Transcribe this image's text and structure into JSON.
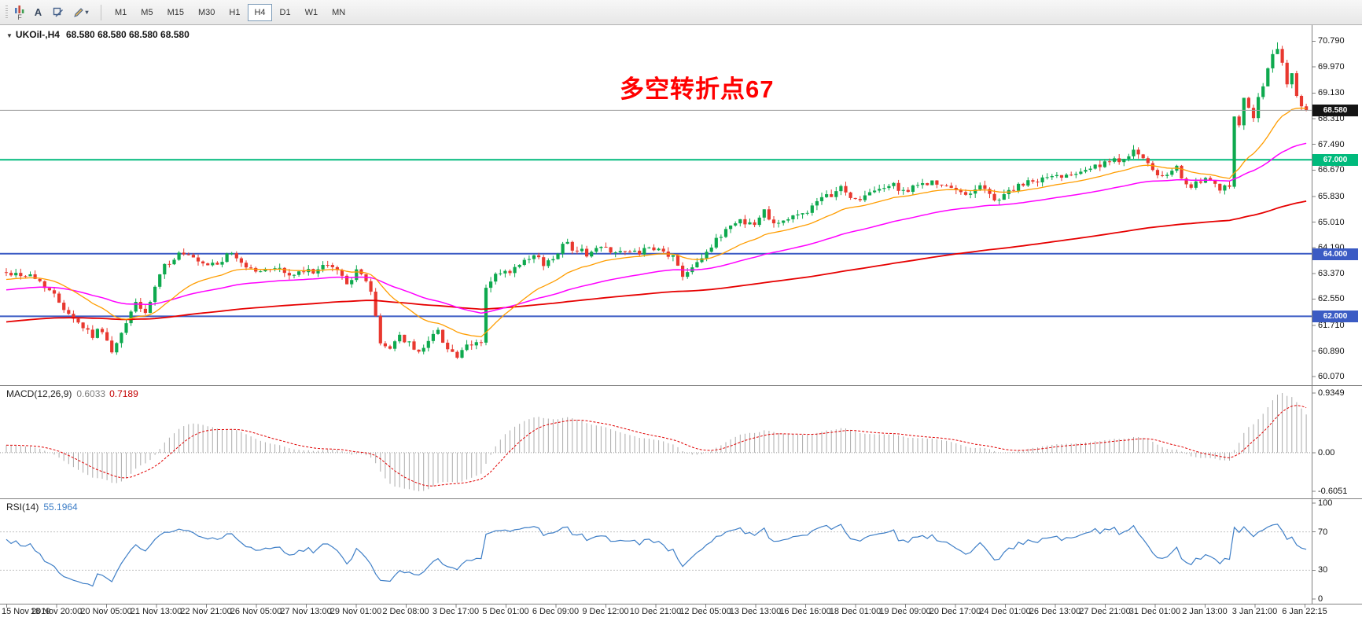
{
  "toolbar": {
    "f_label": "F",
    "text_tool_label": "A",
    "timeframes": [
      "M1",
      "M5",
      "M15",
      "M30",
      "H1",
      "H4",
      "D1",
      "W1",
      "MN"
    ],
    "active_timeframe": "H4"
  },
  "chart_header": {
    "collapse_icon": "▼",
    "ohlc": "68.580 68.580 68.580 68.580"
  },
  "annotation": {
    "text": "多空转折点67",
    "color": "#FF0000"
  },
  "chart_data": [
    {
      "type": "candlestick",
      "title": "UKOil-,H4",
      "bars": 272,
      "ylim": [
        59.8,
        71.3
      ],
      "y_ticks": [
        "70.790",
        "69.970",
        "69.130",
        "68.310",
        "67.490",
        "66.670",
        "65.830",
        "65.010",
        "64.190",
        "63.370",
        "62.550",
        "61.710",
        "60.890",
        "60.070"
      ],
      "x_labels": [
        "15 Nov 2019",
        "18 Nov 20:00",
        "20 Nov 05:00",
        "21 Nov 13:00",
        "22 Nov 21:00",
        "26 Nov 05:00",
        "27 Nov 13:00",
        "29 Nov 01:00",
        "2 Dec 08:00",
        "3 Dec 17:00",
        "5 Dec 01:00",
        "6 Dec 09:00",
        "9 Dec 12:00",
        "10 Dec 21:00",
        "12 Dec 05:00",
        "13 Dec 13:00",
        "16 Dec 16:00",
        "18 Dec 01:00",
        "19 Dec 09:00",
        "20 Dec 17:00",
        "24 Dec 01:00",
        "26 Dec 13:00",
        "27 Dec 21:00",
        "31 Dec 01:00",
        "2 Jan 13:00",
        "3 Jan 21:00",
        "6 Jan 22:15"
      ],
      "price_anchors": [
        [
          0,
          63.4
        ],
        [
          5,
          63.3
        ],
        [
          8,
          63.0
        ],
        [
          12,
          62.3
        ],
        [
          15,
          61.8
        ],
        [
          18,
          61.4
        ],
        [
          20,
          61.6
        ],
        [
          22,
          60.8
        ],
        [
          24,
          61.4
        ],
        [
          27,
          62.5
        ],
        [
          29,
          62.0
        ],
        [
          31,
          62.9
        ],
        [
          33,
          63.6
        ],
        [
          36,
          64.0
        ],
        [
          38,
          63.9
        ],
        [
          41,
          63.6
        ],
        [
          44,
          63.7
        ],
        [
          47,
          64.0
        ],
        [
          50,
          63.6
        ],
        [
          53,
          63.4
        ],
        [
          56,
          63.6
        ],
        [
          59,
          63.3
        ],
        [
          62,
          63.4
        ],
        [
          65,
          63.5
        ],
        [
          68,
          63.6
        ],
        [
          71,
          63.1
        ],
        [
          73,
          63.4
        ],
        [
          75,
          63.2
        ],
        [
          76,
          62.8
        ],
        [
          78,
          61.1
        ],
        [
          80,
          61.0
        ],
        [
          82,
          61.4
        ],
        [
          84,
          61.1
        ],
        [
          86,
          60.8
        ],
        [
          88,
          61.3
        ],
        [
          90,
          61.5
        ],
        [
          92,
          61.0
        ],
        [
          94,
          60.7
        ],
        [
          96,
          61.0
        ],
        [
          99,
          61.2
        ],
        [
          100,
          62.9
        ],
        [
          102,
          63.3
        ],
        [
          105,
          63.4
        ],
        [
          108,
          63.7
        ],
        [
          110,
          63.9
        ],
        [
          112,
          63.7
        ],
        [
          114,
          63.8
        ],
        [
          116,
          64.4
        ],
        [
          118,
          64.2
        ],
        [
          121,
          64.0
        ],
        [
          124,
          64.2
        ],
        [
          127,
          64.1
        ],
        [
          130,
          64.0
        ],
        [
          133,
          64.1
        ],
        [
          136,
          64.1
        ],
        [
          139,
          63.9
        ],
        [
          141,
          63.3
        ],
        [
          144,
          63.8
        ],
        [
          147,
          64.2
        ],
        [
          150,
          64.8
        ],
        [
          153,
          65.1
        ],
        [
          156,
          64.9
        ],
        [
          158,
          65.4
        ],
        [
          160,
          65.0
        ],
        [
          163,
          65.1
        ],
        [
          166,
          65.3
        ],
        [
          168,
          65.5
        ],
        [
          171,
          65.8
        ],
        [
          174,
          66.1
        ],
        [
          177,
          65.7
        ],
        [
          180,
          65.9
        ],
        [
          184,
          66.2
        ],
        [
          188,
          66.0
        ],
        [
          192,
          66.3
        ],
        [
          196,
          66.1
        ],
        [
          200,
          65.9
        ],
        [
          203,
          66.2
        ],
        [
          206,
          65.7
        ],
        [
          209,
          66.0
        ],
        [
          212,
          66.2
        ],
        [
          216,
          66.4
        ],
        [
          220,
          66.5
        ],
        [
          224,
          66.7
        ],
        [
          228,
          66.8
        ],
        [
          232,
          67.0
        ],
        [
          235,
          67.3
        ],
        [
          238,
          66.8
        ],
        [
          241,
          66.4
        ],
        [
          244,
          66.7
        ],
        [
          247,
          66.1
        ],
        [
          250,
          66.4
        ],
        [
          253,
          66.0
        ],
        [
          255,
          66.2
        ],
        [
          256,
          68.4
        ],
        [
          257,
          68.2
        ],
        [
          258,
          69.0
        ],
        [
          259,
          68.6
        ],
        [
          260,
          68.4
        ],
        [
          262,
          69.4
        ],
        [
          264,
          70.3
        ],
        [
          265,
          70.6
        ],
        [
          266,
          70.0
        ],
        [
          267,
          69.5
        ],
        [
          268,
          69.7
        ],
        [
          269,
          69.1
        ],
        [
          270,
          68.8
        ],
        [
          271,
          68.58
        ]
      ],
      "final_close": 68.58,
      "peak_bar": 265,
      "peak_high": 70.75,
      "candle_up_color": "#0EA94E",
      "candle_down_color": "#E8382F",
      "levels": [
        {
          "price": 67.0,
          "label": "67.000",
          "color": "#00BA7C"
        },
        {
          "price": 64.0,
          "label": "64.000",
          "color": "#3B5BC4"
        },
        {
          "price": 62.0,
          "label": "62.000",
          "color": "#3B5BC4"
        }
      ],
      "current_price": {
        "value": 68.58,
        "label": "68.580",
        "line_color": "#A0A0A0",
        "badge_color": "#141414"
      },
      "moving_averages": [
        {
          "name": "fast",
          "period": 21,
          "color": "#FF9D00",
          "width": 1.3
        },
        {
          "name": "mid",
          "period": 60,
          "color": "#FF00FF",
          "width": 1.5
        },
        {
          "name": "slow",
          "period": 200,
          "color": "#E60000",
          "width": 1.8
        }
      ],
      "history_seed": {
        "bars": 220,
        "from": 59.6,
        "to": 63.3
      },
      "grid": "off",
      "legend": "none"
    },
    {
      "type": "macd-histogram",
      "label": "MACD(12,26,9)",
      "params": [
        12,
        26,
        9
      ],
      "value_main": 0.6033,
      "value_signal": 0.7189,
      "y_ticks": [
        "0.9349",
        "0.00",
        "-0.6051"
      ],
      "scale_max": 0.9349,
      "scale_min": -0.6051,
      "histogram_color": "#ABABAB",
      "signal_color": "#E00000"
    },
    {
      "type": "line",
      "label": "RSI(14)",
      "period": 14,
      "value": 55.1964,
      "y_ticks": [
        "100",
        "70",
        "30",
        "0"
      ],
      "levels": [
        70,
        30
      ],
      "line_color": "#3F7FC7",
      "level_color": "#C0C0C0"
    }
  ]
}
